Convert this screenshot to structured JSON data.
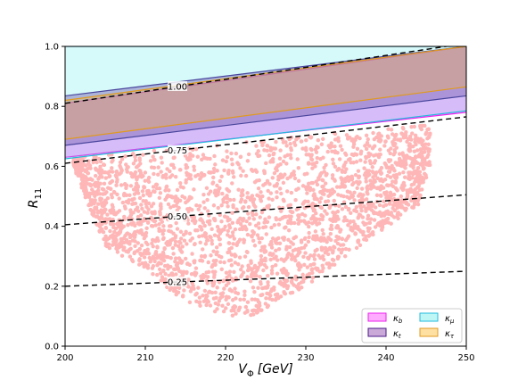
{
  "chart_data": {
    "type": "scatter",
    "xlabel": "V_Φ [GeV]",
    "xlabel_main": "V",
    "xlabel_sub": "Φ",
    "xlabel_unit": "[GeV]",
    "ylabel": "R_11",
    "ylabel_main": "R",
    "ylabel_sub": "11",
    "xlim": [
      200,
      250
    ],
    "ylim": [
      0.0,
      1.0
    ],
    "xticks": [
      "200",
      "210",
      "220",
      "230",
      "240",
      "250"
    ],
    "yticks": [
      "0.0",
      "0.2",
      "0.4",
      "0.6",
      "0.8",
      "1.0"
    ],
    "grid": false,
    "legend_position": "bottom-right",
    "contours": [
      {
        "label": "0.25",
        "x": [
          200,
          250
        ],
        "y": [
          0.2,
          0.25
        ],
        "label_at": 214
      },
      {
        "label": "0.50",
        "x": [
          200,
          250
        ],
        "y": [
          0.405,
          0.505
        ],
        "label_at": 214
      },
      {
        "label": "0.75",
        "x": [
          200,
          250
        ],
        "y": [
          0.61,
          0.765
        ],
        "label_at": 214
      },
      {
        "label": "1.00",
        "x": [
          200,
          250
        ],
        "y": [
          0.81,
          1.01
        ],
        "label_at": 214
      }
    ],
    "bands": [
      {
        "name": "κ_b",
        "name_main": "κ",
        "name_sub": "b",
        "color": "#ff55ff",
        "edge": "#ee22ee",
        "lower": [
          [
            200,
            0.63
          ],
          [
            250,
            0.78
          ]
        ],
        "upper": [
          [
            200,
            0.81
          ],
          [
            250,
            1.0
          ]
        ]
      },
      {
        "name": "κ_t",
        "name_main": "κ",
        "name_sub": "t",
        "color": "#8a3fa6",
        "edge": "#4b1a8a",
        "lower": [
          [
            200,
            0.67
          ],
          [
            250,
            0.835
          ]
        ],
        "upper": [
          [
            200,
            0.835
          ],
          [
            250,
            1.0
          ]
        ]
      },
      {
        "name": "κ_μ",
        "name_main": "κ",
        "name_sub": "μ",
        "color": "#44e5e5",
        "edge": "#22bbdd",
        "lower": [
          [
            200,
            0.625
          ],
          [
            250,
            0.785
          ]
        ],
        "upper": [
          [
            200,
            1.0
          ],
          [
            250,
            1.0
          ]
        ]
      },
      {
        "name": "κ_τ",
        "name_main": "κ",
        "name_sub": "τ",
        "color": "#ffbb33",
        "edge": "#e09a20",
        "lower": [
          [
            200,
            0.69
          ],
          [
            250,
            0.865
          ]
        ],
        "upper": [
          [
            200,
            0.82
          ],
          [
            250,
            1.0
          ]
        ]
      }
    ],
    "scatter_series": {
      "color": "#ffb6b6",
      "x_range": [
        201,
        245.5
      ],
      "y_range": [
        0.09,
        0.73
      ],
      "x_peak": 222.5,
      "y_at_peak_lower": 0.09,
      "upper_boundary": [
        [
          201,
          0.63
        ],
        [
          225,
          0.69
        ],
        [
          240,
          0.73
        ],
        [
          245.5,
          0.74
        ]
      ],
      "lower_boundary": [
        [
          201,
          0.6
        ],
        [
          205,
          0.33
        ],
        [
          210,
          0.26
        ],
        [
          215,
          0.14
        ],
        [
          222.5,
          0.09
        ],
        [
          230,
          0.2
        ],
        [
          238,
          0.36
        ],
        [
          244,
          0.47
        ],
        [
          245.5,
          0.6
        ]
      ]
    },
    "legend": {
      "entries": [
        "κ_b",
        "κ_μ",
        "κ_t",
        "κ_τ"
      ]
    }
  }
}
